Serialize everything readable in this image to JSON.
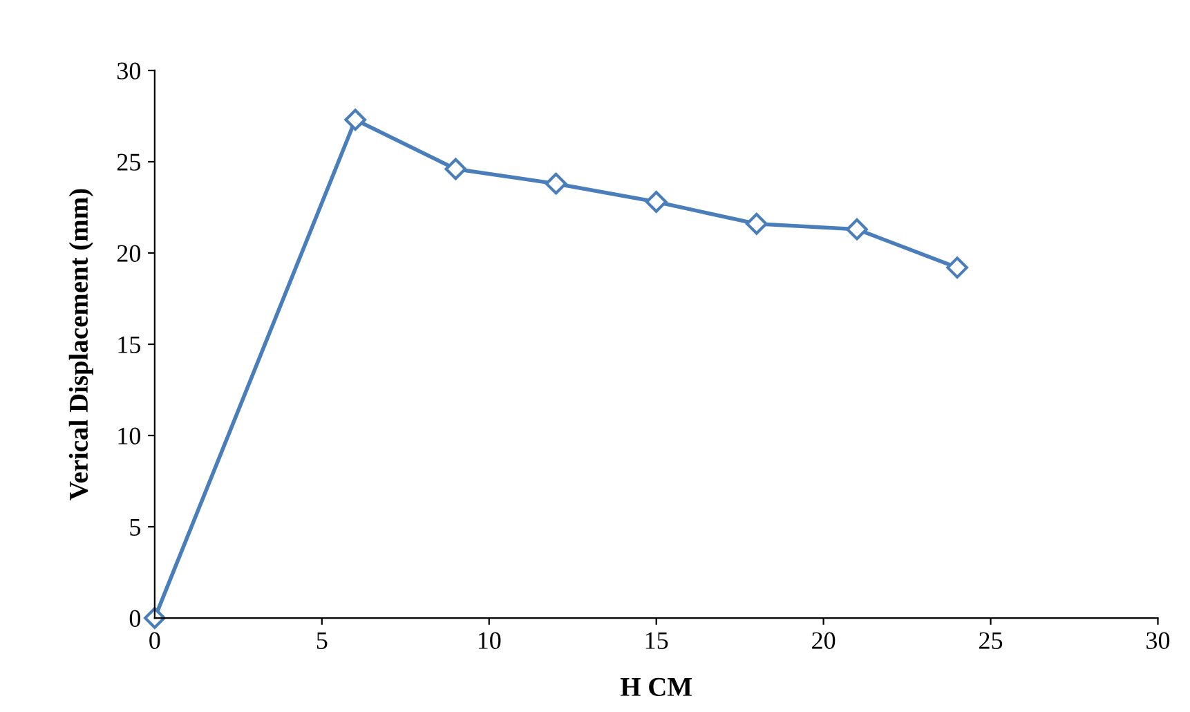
{
  "chart_data": {
    "type": "line",
    "xlabel": "H CM",
    "ylabel": "Verical Displacement (mm)",
    "x": [
      0,
      6,
      9,
      12,
      15,
      18,
      21,
      24
    ],
    "series": [
      {
        "color": "#4a7ebb",
        "values": [
          0,
          27.3,
          24.6,
          23.8,
          22.8,
          21.6,
          21.3,
          19.2
        ]
      }
    ],
    "xlim": [
      0,
      30
    ],
    "xticks": [
      0,
      5,
      10,
      15,
      20,
      25,
      30
    ],
    "ylim": [
      0,
      30
    ],
    "yticks": [
      0,
      5,
      10,
      15,
      20,
      25,
      30
    ],
    "marker": "diamond",
    "line_style": "solid",
    "grid": false,
    "legend": false
  }
}
